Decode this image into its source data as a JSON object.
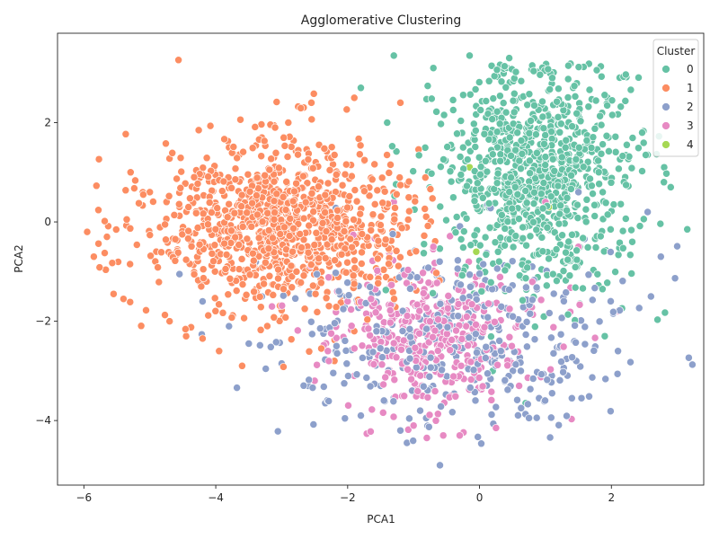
{
  "chart_data": {
    "type": "scatter",
    "title": "Agglomerative Clustering",
    "xlabel": "PCA1",
    "ylabel": "PCA2",
    "xlim": [
      -6.4,
      3.4
    ],
    "ylim": [
      -5.3,
      3.8
    ],
    "xticks": [
      -6,
      -4,
      -2,
      0,
      2
    ],
    "yticks": [
      -4,
      -2,
      0,
      2
    ],
    "grid": false,
    "legend": {
      "title": "Cluster",
      "placement": "top-right"
    },
    "series": [
      {
        "name": "0",
        "color": "#66c2a5",
        "cloud": {
          "cx": 0.9,
          "cy": 1.0,
          "sx": 0.75,
          "sy": 1.1,
          "n": 900
        },
        "points": [
          [
            3.15,
            -0.15
          ],
          [
            2.9,
            0.7
          ],
          [
            -0.7,
            3.1
          ],
          [
            0.8,
            3.15
          ],
          [
            -0.15,
            3.35
          ],
          [
            0.45,
            3.3
          ],
          [
            -1.3,
            3.35
          ],
          [
            2.8,
            1.1
          ],
          [
            1.9,
            -2.3
          ],
          [
            0.7,
            -3.65
          ],
          [
            -1.4,
            2.0
          ],
          [
            -1.8,
            2.7
          ],
          [
            2.55,
            1.35
          ],
          [
            0.2,
            -3.0
          ],
          [
            -0.6,
            -2.55
          ]
        ]
      },
      {
        "name": "1",
        "color": "#fc8d62",
        "cloud": {
          "cx": -3.0,
          "cy": -0.1,
          "sx": 1.05,
          "sy": 0.85,
          "n": 1000
        },
        "points": [
          [
            -5.95,
            -0.2
          ],
          [
            -5.85,
            -0.7
          ],
          [
            -5.65,
            -0.3
          ],
          [
            -5.55,
            -1.45
          ],
          [
            -5.4,
            -1.55
          ],
          [
            -5.3,
            -0.85
          ],
          [
            -5.35,
            0.05
          ],
          [
            -5.1,
            0.55
          ],
          [
            -5.0,
            0.6
          ],
          [
            -4.7,
            -2.0
          ],
          [
            -4.45,
            -2.3
          ],
          [
            -4.2,
            -2.35
          ],
          [
            -3.95,
            -2.6
          ],
          [
            -3.6,
            -2.9
          ],
          [
            -3.8,
            1.5
          ],
          [
            -3.3,
            1.7
          ],
          [
            -3.1,
            1.9
          ],
          [
            -2.9,
            2.0
          ],
          [
            -2.55,
            2.4
          ],
          [
            -1.9,
            2.5
          ],
          [
            -1.2,
            2.4
          ],
          [
            -2.2,
            -2.8
          ],
          [
            -2.4,
            -2.55
          ],
          [
            -1.9,
            -2.2
          ],
          [
            -0.8,
            -2.15
          ]
        ]
      },
      {
        "name": "2",
        "color": "#8da0cb",
        "cloud": {
          "cx": -0.3,
          "cy": -2.4,
          "sx": 1.25,
          "sy": 0.9,
          "n": 380
        },
        "points": [
          [
            -0.6,
            -4.9
          ],
          [
            -1.1,
            -4.45
          ],
          [
            -1.2,
            -4.2
          ],
          [
            -2.3,
            -3.6
          ],
          [
            -2.6,
            -3.3
          ],
          [
            -3.0,
            -2.85
          ],
          [
            -3.5,
            -2.45
          ],
          [
            -3.8,
            -2.1
          ],
          [
            -3.3,
            -1.5
          ],
          [
            -4.2,
            -1.6
          ],
          [
            -4.55,
            -1.05
          ],
          [
            1.1,
            -3.45
          ],
          [
            1.4,
            -3.55
          ],
          [
            0.75,
            -3.95
          ],
          [
            2.1,
            -2.6
          ],
          [
            2.6,
            -1.5
          ],
          [
            2.75,
            -0.7
          ],
          [
            2.55,
            0.2
          ],
          [
            1.5,
            0.6
          ],
          [
            0.8,
            -0.9
          ],
          [
            -1.5,
            -3.3
          ],
          [
            -1.8,
            -3.9
          ],
          [
            -0.9,
            -3.8
          ]
        ]
      },
      {
        "name": "3",
        "color": "#e78ac3",
        "cloud": {
          "cx": -0.8,
          "cy": -2.3,
          "sx": 0.75,
          "sy": 0.75,
          "n": 380
        },
        "points": [
          [
            -0.3,
            -4.3
          ],
          [
            -0.55,
            -4.3
          ],
          [
            -0.8,
            -4.35
          ],
          [
            0.25,
            -4.15
          ],
          [
            -1.9,
            -3.1
          ],
          [
            -2.5,
            -3.2
          ],
          [
            -2.0,
            -1.6
          ],
          [
            0.6,
            -3.3
          ],
          [
            1.0,
            0.4
          ],
          [
            1.5,
            -0.5
          ],
          [
            0.85,
            0.0
          ],
          [
            2.1,
            -1.8
          ],
          [
            -1.3,
            0.4
          ],
          [
            -0.7,
            -0.5
          ],
          [
            -2.3,
            -2.6
          ],
          [
            -1.0,
            -4.1
          ]
        ]
      },
      {
        "name": "4",
        "color": "#a6d854",
        "cloud": {
          "cx": 0,
          "cy": 0,
          "sx": 0,
          "sy": 0,
          "n": 0
        },
        "points": [
          [
            0.75,
            0.58
          ],
          [
            -0.15,
            1.1
          ],
          [
            1.05,
            0.3
          ],
          [
            -0.05,
            -0.6
          ]
        ]
      }
    ]
  }
}
